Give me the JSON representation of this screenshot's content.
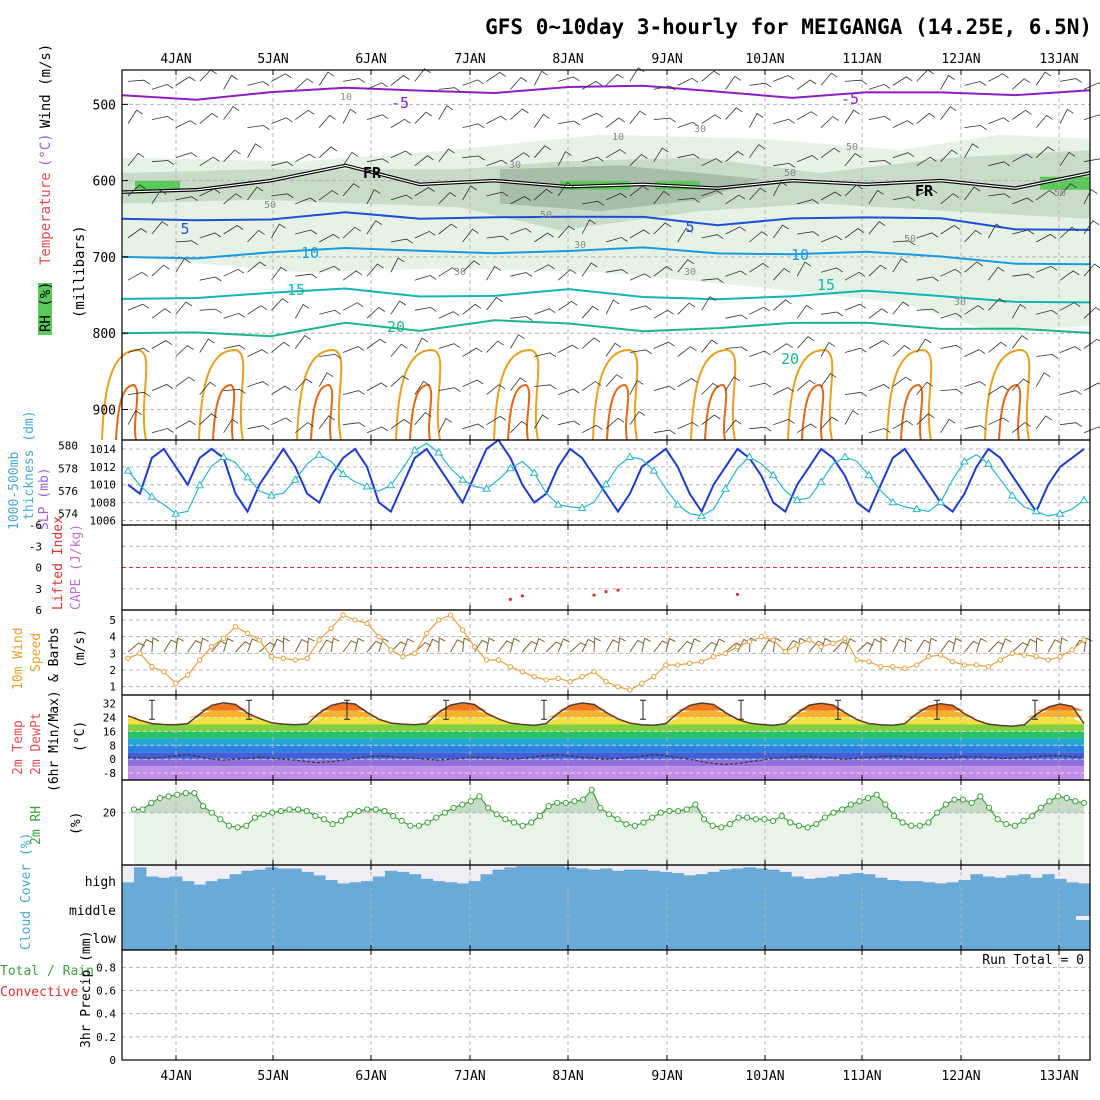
{
  "title": "GFS 0~10day 3-hourly for MEIGANGA (14.25E, 6.5N)",
  "days": [
    "4JAN",
    "5JAN",
    "6JAN",
    "7JAN",
    "8JAN",
    "9JAN",
    "10JAN",
    "11JAN",
    "12JAN",
    "13JAN"
  ],
  "colors": {
    "frame": "#000000",
    "grid": "#b4b4b4",
    "temp_neg5": "#8c1fbf",
    "temp_5": "#1f4fd8",
    "temp_10": "#1a9be0",
    "temp_15": "#14b4b4",
    "temp_20": "#1eb48c",
    "temp_warm": "#e8a020",
    "temp_hot": "#e06818",
    "rh_light": "#e6f2e6",
    "rh_mid": "#c8dcc8",
    "rh_dark": "#a8bea8",
    "rh_high": "#5ac85a",
    "slp": "#1e3cc8",
    "thickness": "#2ab4c8",
    "wind10": "#e8a040",
    "barb": "#303030",
    "rh2m": "#3ca03c",
    "cloud": "#6aaad6",
    "cloud_gap": "#f0eef4",
    "li_zero": "#e03030",
    "lbl_temp": "#e05050",
    "lbl_wind": "#000000",
    "lbl_rh": "#40a040",
    "lbl_purple": "#a060d0",
    "lbl_cape": "#c070c8",
    "lbl_orange": "#e8a030",
    "lbl_cloud": "#4aa8d0",
    "lbl_red": "#e03030"
  },
  "panels": {
    "upper": {
      "axis_label_parts": [
        "RH (%)",
        "Temperature",
        "(°C)",
        "Wind (m/s)",
        "(millibars)"
      ],
      "pressure_levels": [
        "500",
        "600",
        "700",
        "800",
        "900"
      ],
      "contour_labels": [
        "-5",
        "-5",
        "5",
        "5",
        "10",
        "10",
        "15",
        "15",
        "20",
        "20",
        "FR",
        "FR",
        "10",
        "10",
        "30",
        "30",
        "30",
        "30",
        "30",
        "50",
        "50",
        "50",
        "50",
        "50",
        "30",
        "50"
      ],
      "chart_data": {
        "type": "contour",
        "x_axis": "time (3-hourly, 81 steps from 3 JAN 12Z)",
        "y_axis": "pressure (mb)",
        "ylim": [
          940,
          455
        ],
        "isotherms_mb": {
          "-5": [
            488,
            490,
            485,
            482,
            480,
            482,
            480,
            478,
            480,
            490,
            488,
            485,
            484,
            482
          ],
          "5": [
            650,
            648,
            652,
            645,
            648,
            645,
            650,
            650,
            655,
            648,
            652,
            650,
            660,
            665
          ],
          "10": [
            700,
            698,
            695,
            692,
            690,
            692,
            695,
            690,
            692,
            695,
            697,
            700,
            705,
            710
          ],
          "15": [
            755,
            750,
            748,
            745,
            750,
            748,
            745,
            755,
            752,
            750,
            748,
            752,
            755,
            760
          ],
          "20": [
            800,
            795,
            805,
            790,
            795,
            780,
            790,
            800,
            790,
            785,
            790,
            795,
            790,
            800
          ]
        },
        "freezing_level_mb": [
          615,
          612,
          600,
          580,
          605,
          600,
          608,
          605,
          610,
          600,
          605,
          600,
          610,
          590
        ]
      }
    },
    "slp": {
      "axis_labels": [
        "1000-500mb",
        "thickness (dm)",
        "SLP (mb)"
      ],
      "left_ticks": [
        "580",
        "578",
        "576",
        "574"
      ],
      "right_ticks": [
        "1014",
        "1012",
        "1010",
        "1008",
        "1006"
      ],
      "chart_data": {
        "type": "line",
        "series": [
          {
            "name": "SLP (mb)",
            "values": [
              1010,
              1009,
              1013,
              1014,
              1012,
              1010,
              1013,
              1014,
              1013,
              1009,
              1007,
              1010,
              1012,
              1014,
              1012,
              1009,
              1008,
              1011,
              1013,
              1014,
              1012,
              1008,
              1007,
              1010,
              1013,
              1014,
              1012,
              1010,
              1008,
              1011,
              1014,
              1015,
              1013,
              1010,
              1008,
              1009,
              1012,
              1014,
              1013,
              1011,
              1009,
              1007,
              1009,
              1012,
              1013,
              1014,
              1012,
              1009,
              1007,
              1010,
              1012,
              1014,
              1013,
              1011,
              1008,
              1007,
              1010,
              1012,
              1014,
              1013,
              1011,
              1008,
              1007,
              1010,
              1013,
              1014,
              1012,
              1010,
              1008,
              1007,
              1009,
              1012,
              1014,
              1013,
              1011,
              1009,
              1007,
              1010,
              1012,
              1013,
              1014
            ]
          },
          {
            "name": "1000-500mb thickness (dm)",
            "values": [
              577.8,
              576.5,
              575.5,
              574.8,
              574.0,
              574.2,
              576.5,
              578.2,
              579.0,
              578.5,
              577.2,
              576.0,
              575.6,
              575.8,
              577.0,
              578.4,
              579.2,
              578.6,
              577.5,
              576.8,
              576.4,
              576.0,
              576.5,
              578.0,
              579.6,
              580.2,
              579.4,
              578.0,
              577.0,
              576.4,
              576.2,
              577.0,
              578.0,
              578.6,
              577.6,
              575.8,
              574.8,
              574.6,
              574.5,
              575.0,
              576.6,
              578.2,
              579.0,
              578.8,
              577.8,
              576.2,
              574.8,
              574.0,
              573.8,
              574.4,
              576.2,
              578.0,
              579.0,
              578.4,
              577.4,
              576.0,
              575.2,
              575.4,
              576.8,
              578.4,
              579.0,
              578.6,
              577.4,
              576.0,
              575.0,
              574.6,
              574.4,
              574.2,
              575.0,
              577.0,
              578.6,
              579.2,
              578.4,
              577.0,
              575.6,
              574.6,
              574.2,
              573.8,
              574.0,
              574.4,
              575.2
            ]
          }
        ],
        "ylim_slp": [
          1005.5,
          1015
        ],
        "ylim_thickness": [
          573,
          580.5
        ]
      }
    },
    "lifted": {
      "axis_labels": [
        "Lifted Index",
        "CAPE (J/kg)"
      ],
      "ticks": [
        "-6",
        "-3",
        "0",
        "3",
        "6"
      ],
      "chart_data": {
        "type": "line",
        "ylim": [
          -6,
          6
        ],
        "reference_line": 0,
        "cape_points": [
          {
            "step": 32,
            "value": 4.5
          },
          {
            "step": 33,
            "value": 4.0
          },
          {
            "step": 39,
            "value": 3.9
          },
          {
            "step": 40,
            "value": 3.4
          },
          {
            "step": 41,
            "value": 3.2
          },
          {
            "step": 51,
            "value": 3.8
          }
        ]
      }
    },
    "wind10": {
      "axis_labels": [
        "10m Wind",
        "Speed",
        "& Barbs",
        "(m/s)"
      ],
      "ticks": [
        "5",
        "4",
        "3",
        "2",
        "1"
      ],
      "chart_data": {
        "type": "line",
        "series": [
          {
            "name": "10m wind speed (m/s)",
            "values": [
              2.7,
              3.0,
              2.2,
              1.9,
              1.2,
              1.7,
              2.6,
              3.4,
              3.9,
              4.6,
              4.2,
              3.8,
              2.8,
              2.7,
              2.6,
              2.7,
              3.8,
              4.5,
              5.3,
              5.0,
              4.8,
              4.0,
              3.2,
              2.8,
              3.0,
              4.2,
              5.0,
              5.3,
              4.4,
              3.4,
              2.6,
              2.6,
              2.2,
              1.9,
              1.6,
              1.4,
              1.5,
              1.3,
              1.6,
              1.9,
              1.3,
              1.0,
              0.8,
              1.2,
              1.6,
              2.3,
              2.3,
              2.4,
              2.5,
              2.8,
              3.0,
              3.4,
              3.7,
              4.0,
              3.8,
              3.1,
              3.5,
              3.8,
              3.4,
              3.6,
              3.9,
              2.6,
              2.5,
              2.2,
              2.2,
              2.1,
              2.3,
              2.8,
              2.9,
              2.5,
              2.3,
              2.3,
              2.2,
              2.6,
              3.0,
              2.9,
              2.8,
              2.6,
              2.8,
              3.2,
              3.8
            ]
          }
        ],
        "ylim": [
          0.5,
          5.6
        ]
      }
    },
    "temp2m": {
      "axis_labels": [
        "2m Temp",
        "2m DewPt",
        "(6hr Min/Max)",
        "(°C)"
      ],
      "ticks": [
        "32",
        "24",
        "16",
        "8",
        "0",
        "-8"
      ],
      "chart_data": {
        "type": "line",
        "series": [
          {
            "name": "2m Temp (°C)",
            "values": [
              25.0,
              22.5,
              20.5,
              20.0,
              19.8,
              20.5,
              26.0,
              31.0,
              32.5,
              31.5,
              26.5,
              23.5,
              21.0,
              20.2,
              19.8,
              20.3,
              26.5,
              31.0,
              32.5,
              31.8,
              27.0,
              23.0,
              20.8,
              20.2,
              19.8,
              20.5,
              27.0,
              31.2,
              32.5,
              31.5,
              26.5,
              23.2,
              20.8,
              20.0,
              19.5,
              20.5,
              26.5,
              31.0,
              32.4,
              31.5,
              27.0,
              23.2,
              20.8,
              19.8,
              19.6,
              20.5,
              26.5,
              31.0,
              32.4,
              31.5,
              26.8,
              23.0,
              20.8,
              20.0,
              19.5,
              20.5,
              26.5,
              31.2,
              32.3,
              31.2,
              26.8,
              22.8,
              20.5,
              19.8,
              19.5,
              20.5,
              26.2,
              30.5,
              32.0,
              31.0,
              26.2,
              22.5,
              20.2,
              19.4,
              19.0,
              19.8,
              25.8,
              30.0,
              31.8,
              30.5,
              20.5
            ]
          },
          {
            "name": "2m DewPt (°C)",
            "values": [
              1.0,
              0.8,
              0.5,
              1.0,
              2.0,
              2.5,
              1.5,
              0.0,
              -0.5,
              0.0,
              0.5,
              1.0,
              0.5,
              0.0,
              -0.5,
              -1.5,
              -2.0,
              -1.5,
              -0.5,
              0.5,
              1.5,
              1.8,
              1.5,
              1.0,
              0.5,
              0.0,
              -0.5,
              0.0,
              0.5,
              1.0,
              0.8,
              0.5,
              0.0,
              0.5,
              1.5,
              2.0,
              2.5,
              2.0,
              1.0,
              0.5,
              0.0,
              0.5,
              1.0,
              1.8,
              2.5,
              2.0,
              1.0,
              0.0,
              -1.5,
              -2.5,
              -3.0,
              -2.5,
              -1.5,
              -0.5,
              0.5,
              1.0,
              1.5,
              1.5,
              1.0,
              0.5,
              0.0,
              0.5,
              1.0,
              1.5,
              1.8,
              1.5,
              1.0,
              0.5,
              0.5,
              1.0,
              1.5,
              1.5,
              1.0,
              0.5,
              0.5,
              1.0,
              1.5,
              2.0,
              2.0,
              1.5,
              1.0
            ]
          }
        ],
        "ylim": [
          -12,
          37
        ]
      }
    },
    "rh2m": {
      "axis_labels": [
        "2m RH",
        "(%)"
      ],
      "ticks": [
        "20"
      ],
      "chart_data": {
        "type": "area",
        "series": [
          {
            "name": "2m RH (%)",
            "values": [
              22,
              22,
              26,
              29,
              30,
              31,
              32,
              32,
              24,
              20,
              16,
              12,
              11,
              12,
              17,
              19,
              20,
              21,
              22,
              22,
              21,
              18,
              16,
              13,
              15,
              19,
              21,
              22,
              22,
              21,
              18,
              15,
              12,
              12,
              14,
              17,
              20,
              23,
              25,
              27,
              30,
              23,
              19,
              16,
              14,
              12,
              14,
              18,
              24,
              26,
              26,
              27,
              28,
              34,
              23,
              19,
              16,
              13,
              12,
              14,
              17,
              20,
              21,
              21,
              22,
              25,
              16,
              12,
              11,
              13,
              17,
              17,
              16,
              16,
              15,
              18,
              14,
              12,
              11,
              13,
              17,
              20,
              22,
              25,
              27,
              29,
              31,
              25,
              18,
              14,
              12,
              12,
              14,
              20,
              25,
              28,
              28,
              26,
              30,
              23,
              16,
              13,
              12,
              15,
              18,
              23,
              27,
              30,
              29,
              27,
              26
            ]
          }
        ],
        "ylim": [
          -12,
          40
        ]
      }
    },
    "cloud": {
      "axis_label": "Cloud Cover (%)",
      "levels": [
        "high",
        "middle",
        "low"
      ],
      "chart_data": {
        "type": "bar",
        "high_percent": [
          25,
          90,
          50,
          45,
          50,
          30,
          15,
          30,
          40,
          60,
          75,
          80,
          90,
          85,
          85,
          70,
          55,
          35,
          20,
          25,
          30,
          50,
          75,
          70,
          60,
          40,
          30,
          25,
          20,
          30,
          60,
          80,
          90,
          95,
          95,
          95,
          95,
          90,
          85,
          80,
          85,
          75,
          80,
          80,
          75,
          70,
          65,
          55,
          60,
          70,
          80,
          85,
          90,
          85,
          80,
          70,
          50,
          40,
          45,
          50,
          60,
          65,
          60,
          45,
          35,
          30,
          30,
          25,
          20,
          25,
          35,
          60,
          50,
          45,
          55,
          60,
          45,
          60,
          40,
          25,
          20
        ],
        "middle_percent": 100,
        "low_percent": 100
      }
    },
    "precip": {
      "axis_labels": [
        "Total / Rain",
        "Convective",
        "3hr Precip (mm)"
      ],
      "ticks": [
        "0.8",
        "0.6",
        "0.4",
        "0.2",
        "0"
      ],
      "run_total": "Run Total = 0",
      "chart_data": {
        "type": "bar",
        "ylim": [
          0,
          0.95
        ],
        "values": [
          0
        ]
      }
    }
  }
}
